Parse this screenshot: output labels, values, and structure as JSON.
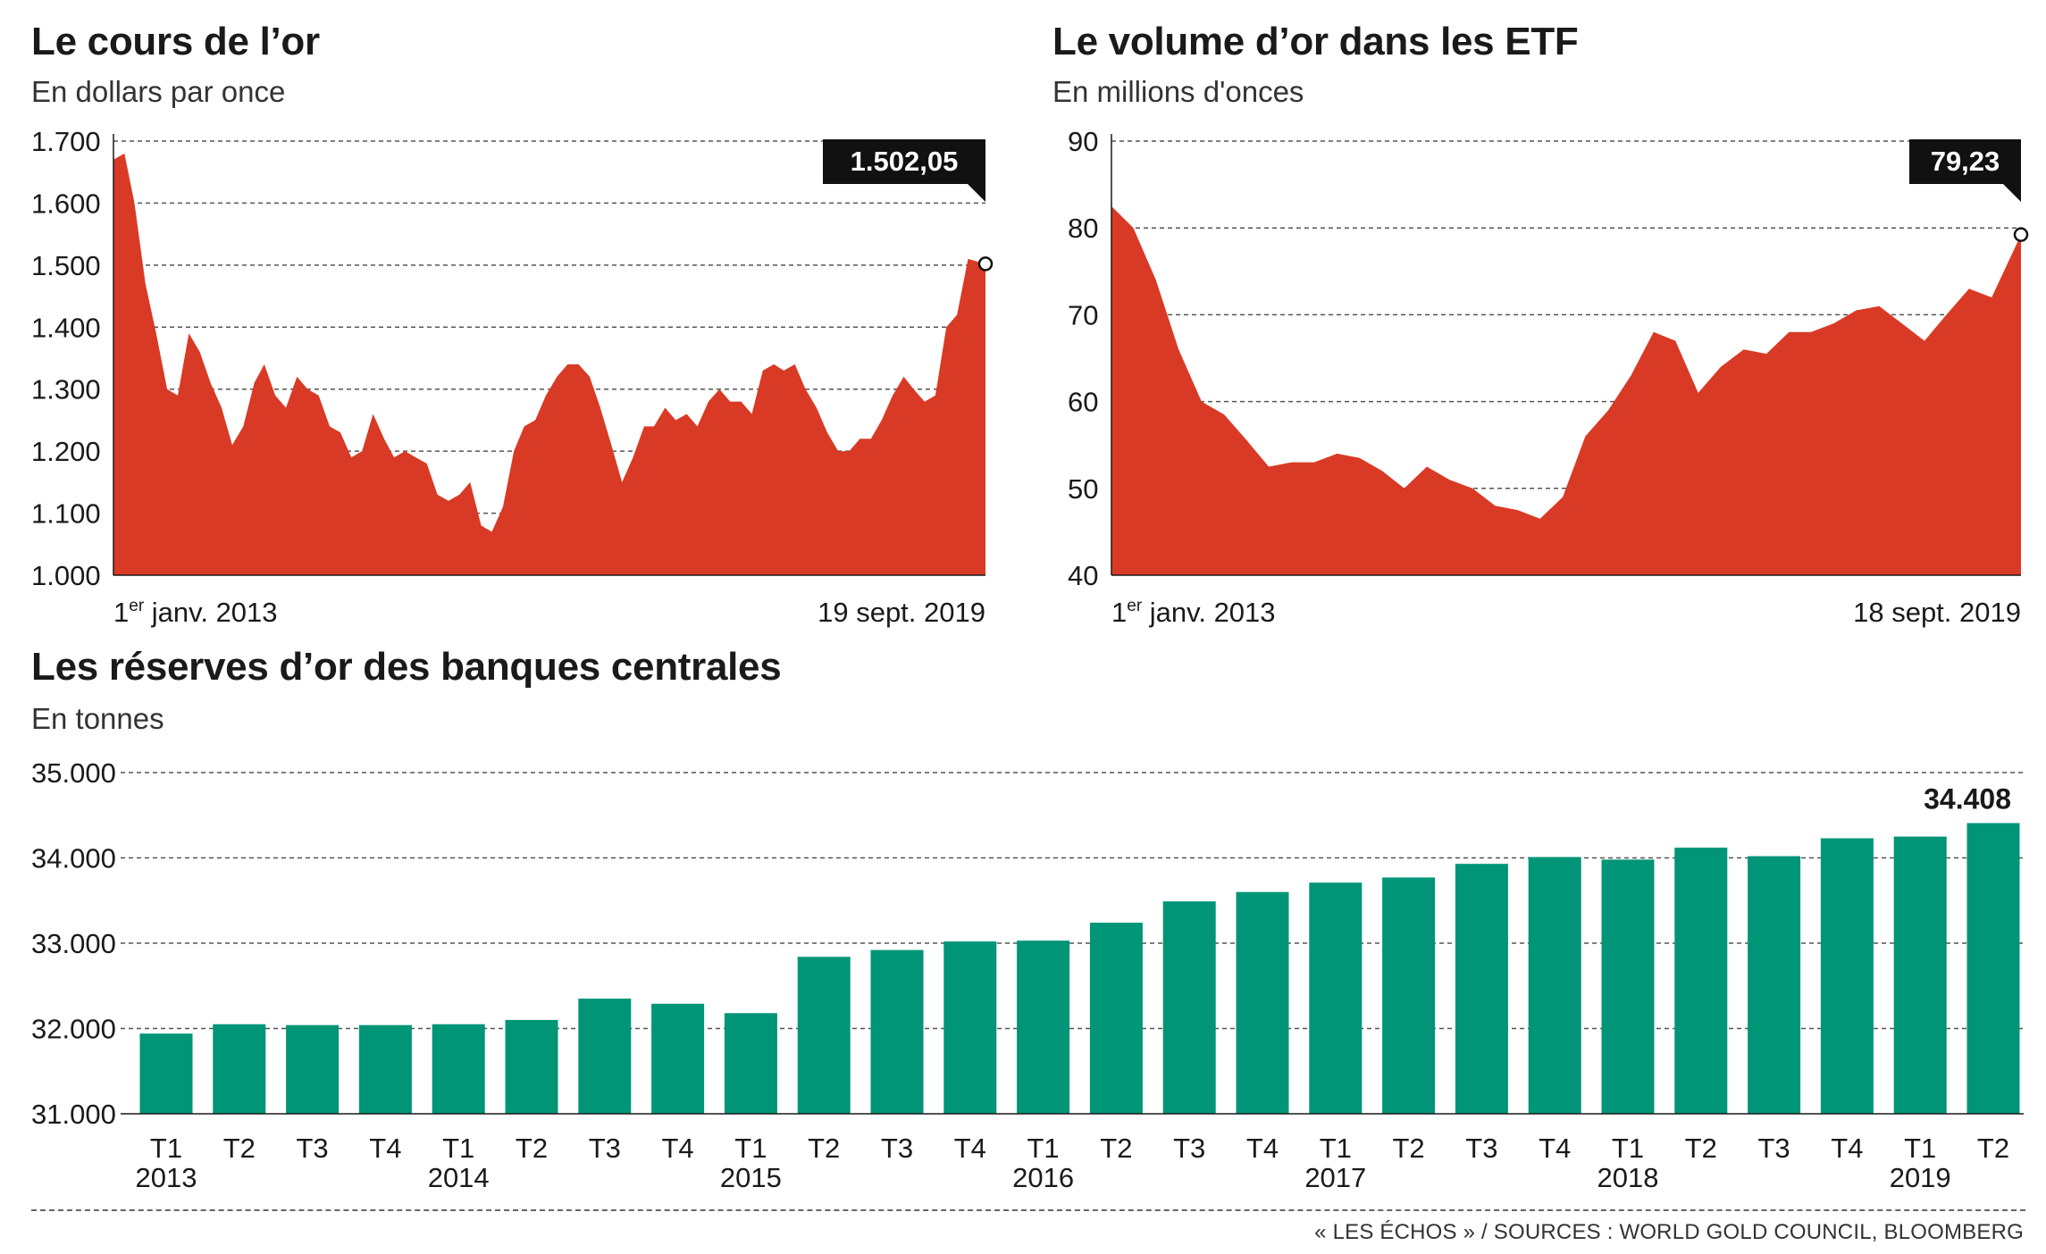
{
  "titles": {
    "gold_price": "Le cours de l’or",
    "gold_price_unit": "En dollars par once",
    "etf_volume": "Le volume d’or dans les ETF",
    "etf_volume_unit": "En millions d'onces",
    "reserves": "Les réserves d’or des banques centrales",
    "reserves_unit": "En tonnes"
  },
  "source": "« LES ÉCHOS » / SOURCES : WORLD GOLD COUNCIL, BLOOMBERG",
  "colors": {
    "area": "#d93a25",
    "bar": "#009577",
    "callout": "#111111",
    "grid": "#555555"
  },
  "chart_data": [
    {
      "type": "area",
      "title": "Le cours de l’or",
      "ylabel": "En dollars par once",
      "ylim": [
        1000,
        1700
      ],
      "yticks": [
        1000,
        1100,
        1200,
        1300,
        1400,
        1500,
        1600,
        1700
      ],
      "ytick_labels": [
        "1.000",
        "1.100",
        "1.200",
        "1.300",
        "1.400",
        "1.500",
        "1.600",
        "1.700"
      ],
      "x_start_label": {
        "num": "1",
        "sup": "er",
        "rest": " janv. 2013"
      },
      "x_end_label": "19 sept. 2019",
      "last_value_label": "1.502,05",
      "x": [
        "2013-01",
        "2013-02",
        "2013-03",
        "2013-04",
        "2013-05",
        "2013-06",
        "2013-07",
        "2013-08",
        "2013-09",
        "2013-10",
        "2013-11",
        "2013-12",
        "2014-01",
        "2014-02",
        "2014-03",
        "2014-04",
        "2014-05",
        "2014-06",
        "2014-07",
        "2014-08",
        "2014-09",
        "2014-10",
        "2014-11",
        "2014-12",
        "2015-01",
        "2015-02",
        "2015-03",
        "2015-04",
        "2015-05",
        "2015-06",
        "2015-07",
        "2015-08",
        "2015-09",
        "2015-10",
        "2015-11",
        "2015-12",
        "2016-01",
        "2016-02",
        "2016-03",
        "2016-04",
        "2016-05",
        "2016-06",
        "2016-07",
        "2016-08",
        "2016-09",
        "2016-10",
        "2016-11",
        "2016-12",
        "2017-01",
        "2017-02",
        "2017-03",
        "2017-04",
        "2017-05",
        "2017-06",
        "2017-07",
        "2017-08",
        "2017-09",
        "2017-10",
        "2017-11",
        "2017-12",
        "2018-01",
        "2018-02",
        "2018-03",
        "2018-04",
        "2018-05",
        "2018-06",
        "2018-07",
        "2018-08",
        "2018-09",
        "2018-10",
        "2018-11",
        "2018-12",
        "2019-01",
        "2019-02",
        "2019-03",
        "2019-04",
        "2019-05",
        "2019-06",
        "2019-07",
        "2019-08",
        "2019-09-19"
      ],
      "values": [
        1670,
        1680,
        1600,
        1470,
        1390,
        1300,
        1290,
        1390,
        1360,
        1310,
        1270,
        1210,
        1240,
        1310,
        1340,
        1290,
        1270,
        1320,
        1300,
        1290,
        1240,
        1230,
        1190,
        1200,
        1260,
        1220,
        1190,
        1200,
        1190,
        1180,
        1130,
        1120,
        1130,
        1150,
        1080,
        1070,
        1110,
        1200,
        1240,
        1250,
        1290,
        1320,
        1340,
        1340,
        1320,
        1270,
        1210,
        1150,
        1190,
        1240,
        1240,
        1270,
        1250,
        1260,
        1240,
        1280,
        1300,
        1280,
        1280,
        1260,
        1330,
        1340,
        1330,
        1340,
        1300,
        1270,
        1230,
        1200,
        1200,
        1220,
        1220,
        1250,
        1290,
        1320,
        1300,
        1280,
        1290,
        1400,
        1420,
        1510,
        1502.05
      ]
    },
    {
      "type": "area",
      "title": "Le volume d’or dans les ETF",
      "ylabel": "En millions d'onces",
      "ylim": [
        40,
        90
      ],
      "yticks": [
        40,
        50,
        60,
        70,
        80,
        90
      ],
      "ytick_labels": [
        "40",
        "50",
        "60",
        "70",
        "80",
        "90"
      ],
      "x_start_label": {
        "num": "1",
        "sup": "er",
        "rest": " janv. 2013"
      },
      "x_end_label": "18 sept. 2019",
      "last_value_label": "79,23",
      "x": [
        "2013-01",
        "2013-03",
        "2013-05",
        "2013-07",
        "2013-09",
        "2013-11",
        "2014-01",
        "2014-03",
        "2014-05",
        "2014-07",
        "2014-09",
        "2014-11",
        "2015-01",
        "2015-03",
        "2015-05",
        "2015-07",
        "2015-09",
        "2015-11",
        "2016-01",
        "2016-03",
        "2016-05",
        "2016-07",
        "2016-09",
        "2016-11",
        "2017-01",
        "2017-03",
        "2017-05",
        "2017-07",
        "2017-09",
        "2017-11",
        "2018-01",
        "2018-03",
        "2018-05",
        "2018-07",
        "2018-09",
        "2018-11",
        "2019-01",
        "2019-03",
        "2019-05",
        "2019-07",
        "2019-09-18"
      ],
      "values": [
        82.5,
        80,
        74,
        66,
        60,
        58.5,
        55.5,
        52.5,
        53,
        53,
        54,
        53.5,
        52,
        50,
        52.5,
        51,
        50,
        48,
        47.5,
        46.5,
        49,
        56,
        59,
        63,
        68,
        67,
        61,
        64,
        66,
        65.5,
        68,
        68,
        69,
        70.5,
        71,
        69,
        67,
        70,
        73,
        72,
        79.23
      ]
    },
    {
      "type": "bar",
      "title": "Les réserves d’or des banques centrales",
      "ylabel": "En tonnes",
      "ylim": [
        31000,
        35000
      ],
      "yticks": [
        31000,
        32000,
        33000,
        34000,
        35000
      ],
      "ytick_labels": [
        "31.000",
        "32.000",
        "33.000",
        "34.000",
        "35.000"
      ],
      "categories": [
        "T1",
        "T2",
        "T3",
        "T4",
        "T1",
        "T2",
        "T3",
        "T4",
        "T1",
        "T2",
        "T3",
        "T4",
        "T1",
        "T2",
        "T3",
        "T4",
        "T1",
        "T2",
        "T3",
        "T4",
        "T1",
        "T2",
        "T3",
        "T4",
        "T1",
        "T2"
      ],
      "years": [
        {
          "label": "2013",
          "index": 0
        },
        {
          "label": "2014",
          "index": 4
        },
        {
          "label": "2015",
          "index": 8
        },
        {
          "label": "2016",
          "index": 12
        },
        {
          "label": "2017",
          "index": 16
        },
        {
          "label": "2018",
          "index": 20
        },
        {
          "label": "2019",
          "index": 24
        }
      ],
      "values": [
        31940,
        32050,
        32040,
        32040,
        32050,
        32100,
        32350,
        32290,
        32180,
        32840,
        32920,
        33020,
        33030,
        33240,
        33490,
        33600,
        33710,
        33770,
        33930,
        34010,
        33980,
        34120,
        34020,
        34230,
        34250,
        34408
      ],
      "last_value_label": "34.408"
    }
  ]
}
